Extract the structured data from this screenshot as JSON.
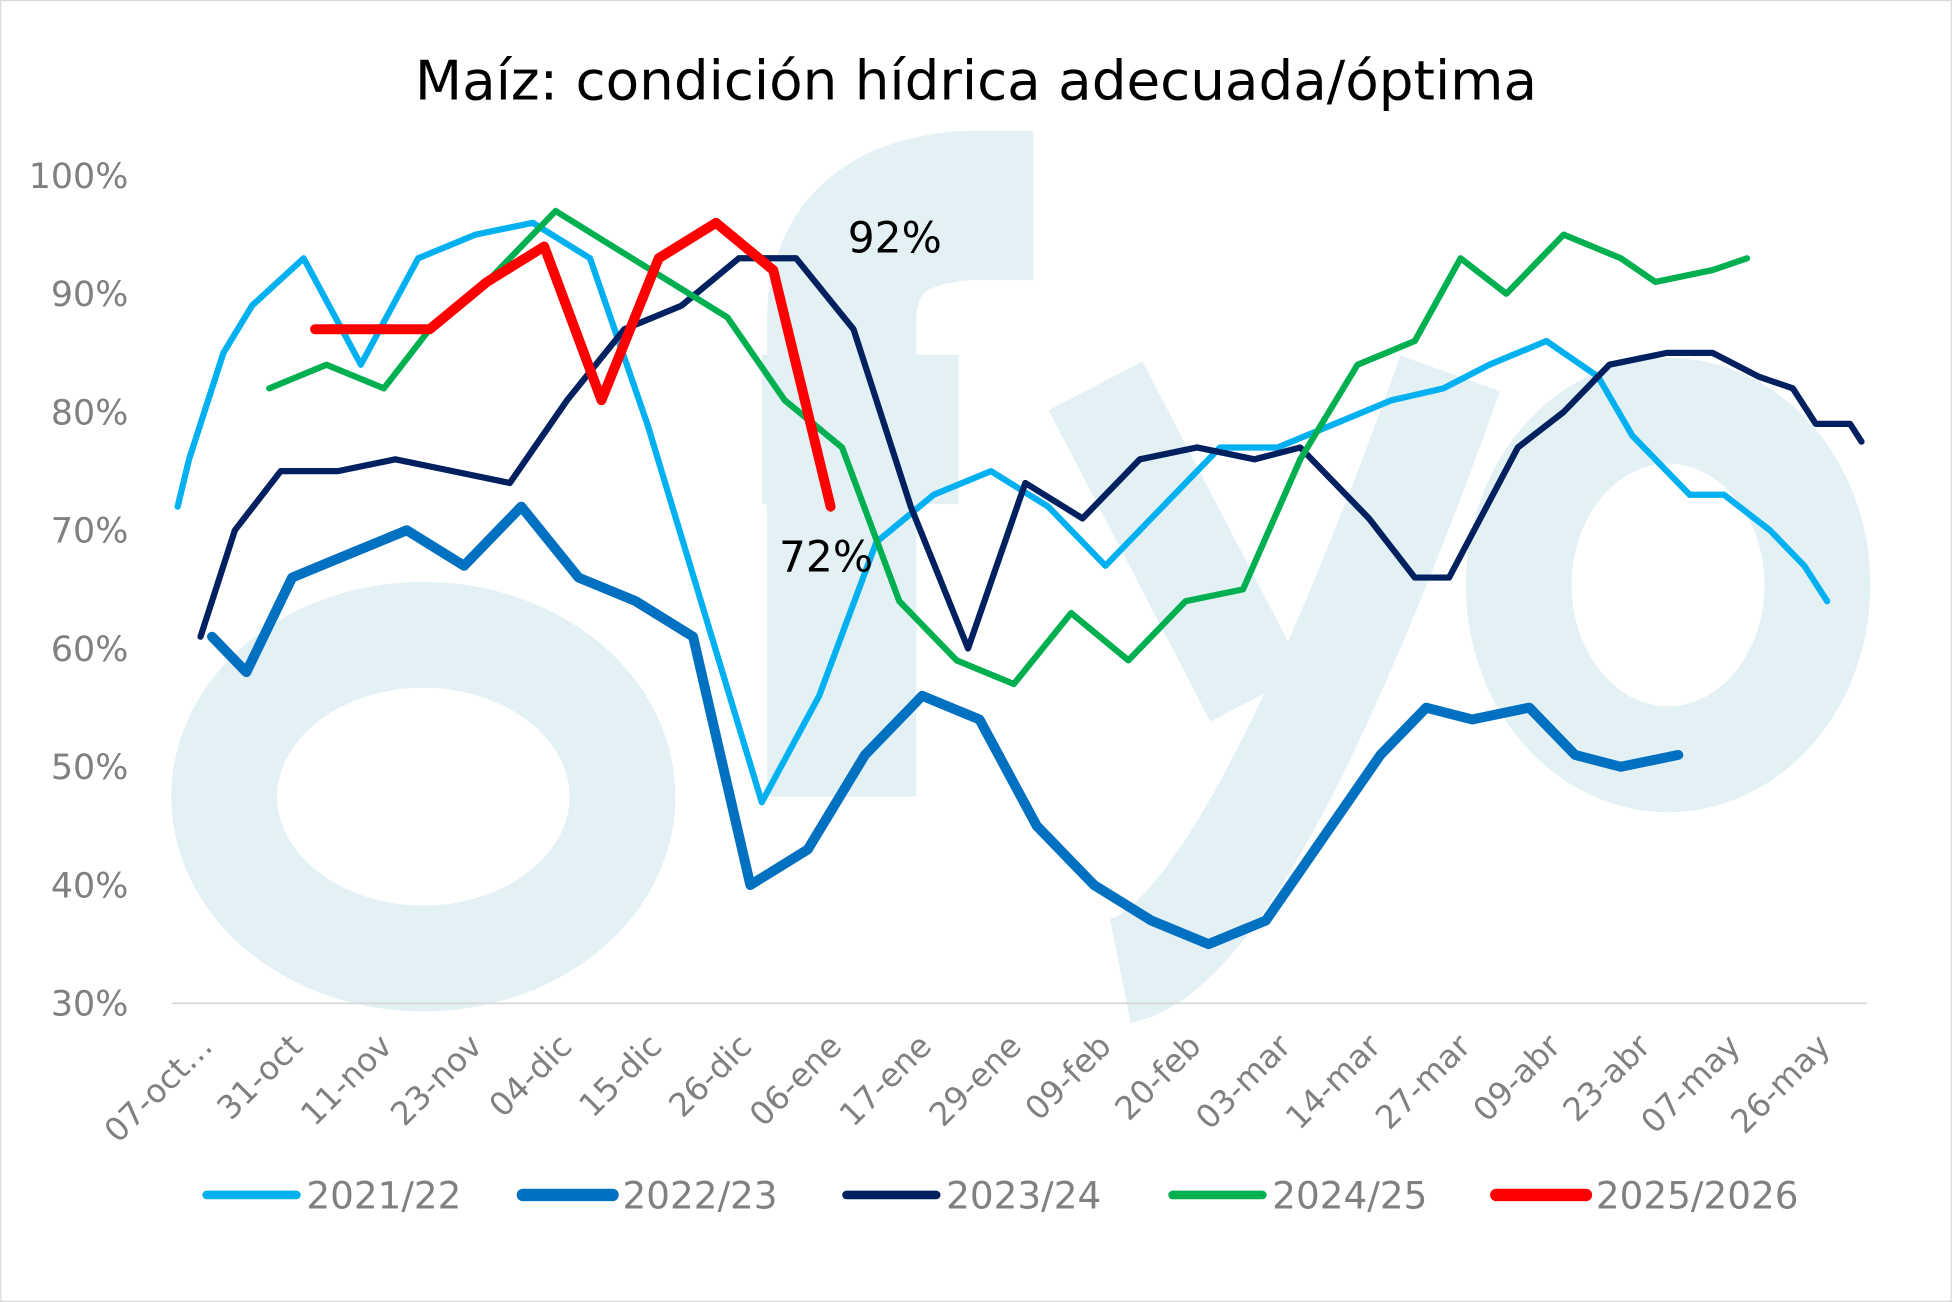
{
  "chart_data": {
    "type": "line",
    "title": "Maíz: condición hídrica adecuada/óptima",
    "xlabel": "",
    "ylabel": "",
    "x_unit": "week index from 07-oct",
    "xlim": [
      -0.1,
      29.5
    ],
    "ylim": [
      30,
      100
    ],
    "yticks": [
      30,
      40,
      50,
      60,
      70,
      80,
      90,
      100
    ],
    "ytick_labels": [
      "30%",
      "40%",
      "50%",
      "60%",
      "70%",
      "80%",
      "90%",
      "100%"
    ],
    "xtick_labels": [
      "07-oct…",
      "31-oct",
      "11-nov",
      "23-nov",
      "04-dic",
      "15-dic",
      "26-dic",
      "06-ene",
      "17-ene",
      "29-ene",
      "09-feb",
      "20-feb",
      "03-mar",
      "14-mar",
      "27-mar",
      "09-abr",
      "23-abr",
      "07-may",
      "26-may"
    ],
    "grid": false,
    "legend_position": "bottom",
    "series": [
      {
        "name": "2021/22",
        "color": "#00b0f0",
        "width": 5,
        "points": [
          [
            0,
            72
          ],
          [
            0.2,
            76
          ],
          [
            0.8,
            85
          ],
          [
            1.3,
            89
          ],
          [
            2.2,
            93
          ],
          [
            3.2,
            84
          ],
          [
            4.2,
            93
          ],
          [
            5.2,
            95
          ],
          [
            6.2,
            96
          ],
          [
            7.2,
            93
          ],
          [
            8.2,
            79
          ],
          [
            9.2,
            63
          ],
          [
            10.2,
            47
          ],
          [
            11.2,
            56
          ],
          [
            12.2,
            69
          ],
          [
            13.2,
            73
          ],
          [
            14.2,
            75
          ],
          [
            15.2,
            72
          ],
          [
            16.2,
            67
          ],
          [
            17.2,
            72
          ],
          [
            18.2,
            77
          ],
          [
            19.2,
            77
          ],
          [
            20.2,
            79
          ],
          [
            21.2,
            81
          ],
          [
            22.1,
            82
          ],
          [
            22.9,
            84
          ],
          [
            23.9,
            86
          ],
          [
            24.8,
            83
          ],
          [
            25.4,
            78
          ],
          [
            26.4,
            73
          ],
          [
            27.0,
            73
          ],
          [
            27.8,
            70
          ],
          [
            28.4,
            67
          ],
          [
            28.8,
            64
          ]
        ]
      },
      {
        "name": "2022/23",
        "color": "#0070c0",
        "width": 8,
        "points": [
          [
            0.6,
            61
          ],
          [
            1.2,
            58
          ],
          [
            2.0,
            66
          ],
          [
            3.0,
            68
          ],
          [
            4.0,
            70
          ],
          [
            5.0,
            67
          ],
          [
            6.0,
            72
          ],
          [
            7.0,
            66
          ],
          [
            8.0,
            64
          ],
          [
            9.0,
            61
          ],
          [
            10.0,
            40
          ],
          [
            11.0,
            43
          ],
          [
            12.0,
            51
          ],
          [
            13.0,
            56
          ],
          [
            14.0,
            54
          ],
          [
            15.0,
            45
          ],
          [
            16.0,
            40
          ],
          [
            17.0,
            37
          ],
          [
            18.0,
            35
          ],
          [
            19.0,
            37
          ],
          [
            20.0,
            44
          ],
          [
            21.0,
            51
          ],
          [
            21.8,
            55
          ],
          [
            22.6,
            54
          ],
          [
            23.6,
            55
          ],
          [
            24.4,
            51
          ],
          [
            25.2,
            50
          ],
          [
            26.2,
            51
          ]
        ]
      },
      {
        "name": "2023/24",
        "color": "#002060",
        "width": 5,
        "points": [
          [
            0.4,
            61
          ],
          [
            1.0,
            70
          ],
          [
            1.8,
            75
          ],
          [
            2.8,
            75
          ],
          [
            3.8,
            76
          ],
          [
            4.8,
            75
          ],
          [
            5.8,
            74
          ],
          [
            6.8,
            81
          ],
          [
            7.8,
            87
          ],
          [
            8.8,
            89
          ],
          [
            9.8,
            93
          ],
          [
            10.8,
            93
          ],
          [
            11.8,
            87
          ],
          [
            12.8,
            72
          ],
          [
            13.8,
            60
          ],
          [
            14.8,
            74
          ],
          [
            15.8,
            71
          ],
          [
            16.8,
            76
          ],
          [
            17.8,
            77
          ],
          [
            18.8,
            76
          ],
          [
            19.6,
            77
          ],
          [
            20.8,
            71
          ],
          [
            21.6,
            66
          ],
          [
            22.2,
            66
          ],
          [
            23.4,
            77
          ],
          [
            24.2,
            80
          ],
          [
            25.0,
            84
          ],
          [
            26.0,
            85
          ],
          [
            26.8,
            85
          ],
          [
            27.6,
            83
          ],
          [
            28.2,
            82
          ],
          [
            28.6,
            79
          ],
          [
            29.2,
            79
          ],
          [
            29.4,
            77.5
          ]
        ]
      },
      {
        "name": "2024/25",
        "color": "#00b050",
        "width": 5,
        "points": [
          [
            1.6,
            82
          ],
          [
            2.6,
            84
          ],
          [
            3.6,
            82
          ],
          [
            4.4,
            87
          ],
          [
            5.4,
            91
          ],
          [
            6.6,
            97
          ],
          [
            7.6,
            94
          ],
          [
            8.6,
            91
          ],
          [
            9.6,
            88
          ],
          [
            10.6,
            81
          ],
          [
            11.6,
            77
          ],
          [
            12.6,
            64
          ],
          [
            13.6,
            59
          ],
          [
            14.6,
            57
          ],
          [
            15.6,
            63
          ],
          [
            16.6,
            59
          ],
          [
            17.6,
            64
          ],
          [
            18.6,
            65
          ],
          [
            19.6,
            76
          ],
          [
            20.6,
            84
          ],
          [
            21.6,
            86
          ],
          [
            22.4,
            93
          ],
          [
            23.2,
            90
          ],
          [
            24.2,
            95
          ],
          [
            25.2,
            93
          ],
          [
            25.8,
            91
          ],
          [
            26.8,
            92
          ],
          [
            27.4,
            93
          ]
        ]
      },
      {
        "name": "2025/2026",
        "color": "#ff0000",
        "width": 8,
        "points": [
          [
            2.4,
            87
          ],
          [
            4.4,
            87
          ],
          [
            5.4,
            91
          ],
          [
            6.4,
            94
          ],
          [
            7.4,
            81
          ],
          [
            8.4,
            93
          ],
          [
            9.4,
            96
          ],
          [
            10.4,
            92
          ],
          [
            11.4,
            72
          ]
        ]
      }
    ],
    "annotations": [
      {
        "text": "92%",
        "x": 11.7,
        "y": 93.5
      },
      {
        "text": "72%",
        "x": 10.5,
        "y": 66.5
      }
    ]
  }
}
